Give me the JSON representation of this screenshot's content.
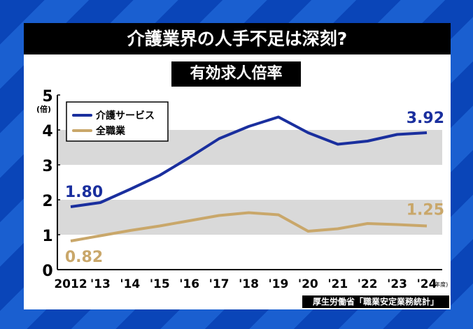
{
  "title": "介護業界の人手不足は深刻?",
  "subtitle": "有効求人倍率",
  "source": "厚生労働省「職業安定業務統計」",
  "chart_data": {
    "type": "line",
    "ylabel": "(倍)",
    "xunit": "(年度)",
    "ylim": [
      0,
      5
    ],
    "yticks": [
      "0",
      "1",
      "2",
      "3",
      "4",
      "5"
    ],
    "categories": [
      "2012",
      "'13",
      "'14",
      "'15",
      "'16",
      "'17",
      "'18",
      "'19",
      "'20",
      "'21",
      "'22",
      "'23",
      "'24"
    ],
    "series": [
      {
        "name": "介護サービス",
        "color": "#1a2f9e",
        "values": [
          1.8,
          1.92,
          2.3,
          2.7,
          3.21,
          3.75,
          4.1,
          4.37,
          3.92,
          3.59,
          3.68,
          3.87,
          3.92
        ]
      },
      {
        "name": "全職業",
        "color": "#c9a76a",
        "values": [
          0.82,
          0.97,
          1.12,
          1.25,
          1.4,
          1.55,
          1.63,
          1.57,
          1.1,
          1.17,
          1.32,
          1.29,
          1.25
        ]
      }
    ],
    "data_labels": [
      {
        "series": 0,
        "index": 0,
        "text": "1.80"
      },
      {
        "series": 0,
        "index": 12,
        "text": "3.92"
      },
      {
        "series": 1,
        "index": 0,
        "text": "0.82"
      },
      {
        "series": 1,
        "index": 12,
        "text": "1.25"
      }
    ],
    "shaded_bands": [
      [
        1,
        2
      ],
      [
        3,
        4
      ]
    ],
    "legend": "top-left"
  }
}
